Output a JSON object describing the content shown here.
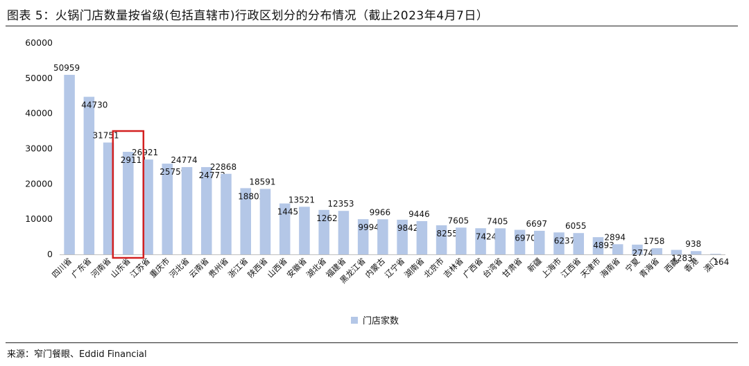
{
  "title": "图表 5：火锅门店数量按省级(包括直辖市)行政区划分的分布情况（截止2023年4月7日）",
  "source": "来源：窄门餐眼、Eddid Financial",
  "colors": {
    "bar": "#b4c7e7",
    "highlight": "#d32020",
    "axis": "#bfbfbf"
  },
  "chart_data": {
    "type": "bar",
    "title": "",
    "xlabel": "",
    "ylabel": "",
    "ylim": [
      0,
      60000
    ],
    "yticks": [
      0,
      10000,
      20000,
      30000,
      40000,
      50000,
      60000
    ],
    "grid": false,
    "legend_position": "bottom",
    "highlighted_category": "山东省",
    "categories": [
      "四川省",
      "广东省",
      "河南省",
      "山东省",
      "江苏省",
      "重庆市",
      "河北省",
      "云南省",
      "贵州省",
      "浙江省",
      "陕西省",
      "山西省",
      "安徽省",
      "湖北省",
      "福建省",
      "黑龙江省",
      "内蒙古",
      "辽宁省",
      "湖南省",
      "北京市",
      "吉林省",
      "广西省",
      "台湾省",
      "甘肃省",
      "新疆",
      "上海市",
      "江西省",
      "天津市",
      "海南省",
      "宁夏",
      "青海省",
      "西藏",
      "香港",
      "澳门"
    ],
    "series": [
      {
        "name": "门店家数",
        "values": [
          50959,
          44730,
          31751,
          29111,
          26921,
          25759,
          24774,
          24773,
          22868,
          18802,
          18591,
          14457,
          13521,
          12623,
          12353,
          9994,
          9966,
          9842,
          9446,
          8255,
          7605,
          7424,
          7405,
          6970,
          6697,
          6237,
          6055,
          4893,
          2894,
          2774,
          1758,
          1283,
          938,
          164
        ]
      }
    ]
  }
}
